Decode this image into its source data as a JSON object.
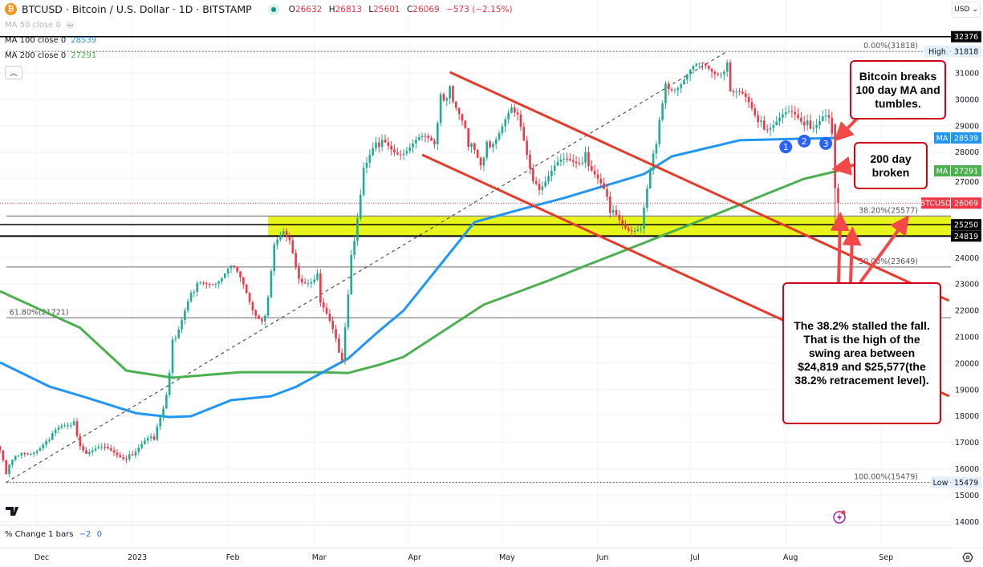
{
  "header": {
    "symbol_line": "BTCUSD · Bitcoin / U.S. Dollar · 1D · BITSTAMP",
    "logo_glyph": "₿",
    "o_label": "O",
    "o": "26632",
    "h_label": "H",
    "h": "26813",
    "l_label": "L",
    "l": "25601",
    "c_label": "C",
    "c": "26069",
    "change": "−573 (−2.15%)"
  },
  "legend": [
    {
      "label": "MA 50 close 0",
      "value": "",
      "hidden": true
    },
    {
      "label": "MA 100 close 0",
      "value": "28539",
      "color": "#2196f3"
    },
    {
      "label": "MA 200 close 0",
      "value": "27291",
      "color": "#4caf50"
    }
  ],
  "currency": "USD",
  "indicator": {
    "label": "% Change 1 bars",
    "v1": "−2",
    "v2": "0"
  },
  "colors": {
    "up": "#22ab94",
    "down": "#f23645",
    "ma100": "#2196f3",
    "ma200": "#4caf50",
    "trend": "#e53b2c",
    "zone": "#e8f51c",
    "annotation": "#d0021b",
    "marker": "#2962ff"
  },
  "annotations": {
    "box1": "Bitcoin breaks 100 day MA and tumbles.",
    "box2": "200 day broken",
    "box3": "The 38.2% stalled the fall. That is the high of the swing area between $24,819 and $25,577(the 38.2% retracement level).",
    "markers": [
      {
        "label": "1",
        "date": "2023-08-01",
        "price": 28200
      },
      {
        "label": "2",
        "date": "2023-08-07",
        "price": 28420
      },
      {
        "label": "3",
        "date": "2023-08-14",
        "price": 28330
      }
    ]
  },
  "chart_data": {
    "type": "candlestick",
    "interval": "1D",
    "x_ticks": [
      {
        "label": "Dec",
        "date": "2022-12-01"
      },
      {
        "label": "2023",
        "date": "2023-01-01"
      },
      {
        "label": "Feb",
        "date": "2023-02-01"
      },
      {
        "label": "Mar",
        "date": "2023-03-01"
      },
      {
        "label": "Apr",
        "date": "2023-04-01"
      },
      {
        "label": "May",
        "date": "2023-05-01"
      },
      {
        "label": "Jun",
        "date": "2023-06-01"
      },
      {
        "label": "Jul",
        "date": "2023-07-01"
      },
      {
        "label": "Aug",
        "date": "2023-08-01"
      },
      {
        "label": "Sep",
        "date": "2023-09-01"
      }
    ],
    "y_ticks": [
      14000,
      15000,
      16000,
      17000,
      18000,
      19000,
      20000,
      21000,
      22000,
      23000,
      24000,
      27000,
      28000,
      29000,
      30000,
      31000
    ],
    "ylim": [
      13700,
      33400
    ],
    "grid": true,
    "close_anchors": [
      [
        "2022-11-19",
        16700
      ],
      [
        "2022-11-21",
        15800
      ],
      [
        "2022-11-25",
        16500
      ],
      [
        "2022-12-05",
        17100
      ],
      [
        "2022-12-13",
        17800
      ],
      [
        "2022-12-16",
        16700
      ],
      [
        "2022-12-31",
        16550
      ],
      [
        "2023-01-08",
        17100
      ],
      [
        "2023-01-12",
        18800
      ],
      [
        "2023-01-14",
        20900
      ],
      [
        "2023-01-21",
        22700
      ],
      [
        "2023-02-02",
        23700
      ],
      [
        "2023-02-09",
        22000
      ],
      [
        "2023-02-13",
        21800
      ],
      [
        "2023-02-16",
        24500
      ],
      [
        "2023-02-20",
        24800
      ],
      [
        "2023-02-24",
        23200
      ],
      [
        "2023-03-02",
        23400
      ],
      [
        "2023-03-03",
        22300
      ],
      [
        "2023-03-09",
        20400
      ],
      [
        "2023-03-10",
        20100
      ],
      [
        "2023-03-13",
        24100
      ],
      [
        "2023-03-17",
        27400
      ],
      [
        "2023-03-22",
        28200
      ],
      [
        "2023-04-09",
        28300
      ],
      [
        "2023-04-11",
        30200
      ],
      [
        "2023-04-14",
        30500
      ],
      [
        "2023-04-20",
        28200
      ],
      [
        "2023-04-24",
        27500
      ],
      [
        "2023-04-26",
        28400
      ],
      [
        "2023-05-05",
        29500
      ],
      [
        "2023-05-12",
        26800
      ],
      [
        "2023-05-28",
        28000
      ],
      [
        "2023-06-05",
        25700
      ],
      [
        "2023-06-15",
        25100
      ],
      [
        "2023-06-20",
        28300
      ],
      [
        "2023-06-23",
        30600
      ],
      [
        "2023-07-13",
        31400
      ],
      [
        "2023-07-14",
        30300
      ],
      [
        "2023-07-24",
        29200
      ],
      [
        "2023-08-08",
        29200
      ],
      [
        "2023-08-14",
        29400
      ],
      [
        "2023-08-16",
        28700
      ],
      [
        "2023-08-17",
        26632
      ]
    ],
    "last_candle": {
      "date": "2023-08-18",
      "open": 26632,
      "high": 26813,
      "low": 25601,
      "close": 26069
    },
    "ma100": [
      [
        "2022-11-19",
        20030
      ],
      [
        "2022-12-05",
        19120
      ],
      [
        "2022-12-17",
        18700
      ],
      [
        "2023-01-02",
        18110
      ],
      [
        "2023-01-13",
        17960
      ],
      [
        "2023-01-20",
        17990
      ],
      [
        "2023-02-02",
        18600
      ],
      [
        "2023-02-15",
        18750
      ],
      [
        "2023-02-23",
        19100
      ],
      [
        "2023-03-12",
        20180
      ],
      [
        "2023-03-22",
        21220
      ],
      [
        "2023-03-30",
        22000
      ],
      [
        "2023-04-22",
        25350
      ],
      [
        "2023-05-08",
        25860
      ],
      [
        "2023-05-21",
        26260
      ],
      [
        "2023-06-16",
        27170
      ],
      [
        "2023-06-25",
        27840
      ],
      [
        "2023-07-17",
        28450
      ],
      [
        "2023-08-07",
        28510
      ],
      [
        "2023-08-18",
        28539
      ]
    ],
    "ma200": [
      [
        "2022-11-19",
        22730
      ],
      [
        "2022-12-15",
        21340
      ],
      [
        "2022-12-30",
        19720
      ],
      [
        "2023-01-14",
        19450
      ],
      [
        "2023-02-05",
        19660
      ],
      [
        "2023-03-02",
        19660
      ],
      [
        "2023-03-12",
        19630
      ],
      [
        "2023-03-22",
        19940
      ],
      [
        "2023-03-30",
        20240
      ],
      [
        "2023-04-25",
        22220
      ],
      [
        "2023-05-16",
        23130
      ],
      [
        "2023-05-29",
        23740
      ],
      [
        "2023-06-16",
        24560
      ],
      [
        "2023-07-12",
        25770
      ],
      [
        "2023-08-07",
        26990
      ],
      [
        "2023-08-18",
        27291
      ]
    ],
    "levels": [
      {
        "price": 32376,
        "label": "32376",
        "style": "solid"
      },
      {
        "price": 25250,
        "label": "25250",
        "style": "solid"
      },
      {
        "price": 24819,
        "label": "24819",
        "style": "solid"
      }
    ],
    "zone": {
      "from_date": "2023-02-14",
      "top": 25577,
      "bottom": 24819
    },
    "fibonacci": {
      "from": {
        "date": "2022-11-21",
        "price": 15479
      },
      "to": {
        "date": "2023-07-13",
        "price": 31818
      },
      "levels": [
        {
          "ratio": "0.00%",
          "price": 31818,
          "label": "0.00%(31818)"
        },
        {
          "ratio": "38.20%",
          "price": 25577,
          "label": "38.20%(25577)"
        },
        {
          "ratio": "50.00%",
          "price": 23649,
          "label": "50.00%(23649)"
        },
        {
          "ratio": "61.80%",
          "price": 21721,
          "label": "61.80%(21721)"
        },
        {
          "ratio": "100.00%",
          "price": 15479,
          "label": "100.00%(15479)"
        }
      ]
    },
    "trendlines": [
      {
        "from": [
          "2023-04-14",
          31030
        ],
        "to": [
          "2023-09-23",
          22370
        ]
      },
      {
        "from": [
          "2023-04-05",
          27900
        ],
        "to": [
          "2023-09-23",
          18750
        ]
      }
    ],
    "price_labels": {
      "high": {
        "tag": "High",
        "value": "31818"
      },
      "low": {
        "tag": "Low",
        "value": "15479"
      },
      "ma100": {
        "tag": "MA",
        "value": "28539"
      },
      "ma200": {
        "tag": "MA",
        "value": "27291"
      },
      "last": {
        "tag": "BTCUSD",
        "value": "26069"
      }
    }
  }
}
